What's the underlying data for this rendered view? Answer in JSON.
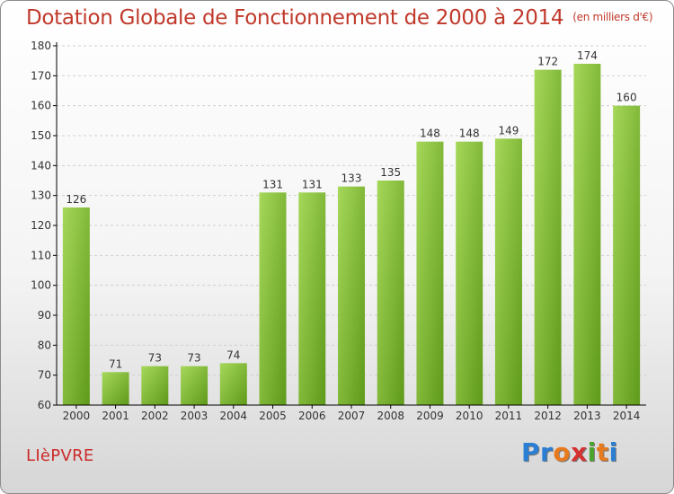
{
  "title": "Dotation Globale de Fonctionnement de 2000 à 2014",
  "subtitle": "(en milliers d'€)",
  "commune": "LIèPVRE",
  "logo": {
    "text": "Proxiti",
    "letters": [
      {
        "ch": "P",
        "color": "#2a7fd4"
      },
      {
        "ch": "r",
        "color": "#2a7fd4"
      },
      {
        "ch": "o",
        "color": "#e87a1e"
      },
      {
        "ch": "x",
        "color": "#d63131"
      },
      {
        "ch": "i",
        "color": "#4aa52c"
      },
      {
        "ch": "t",
        "color": "#e87a1e"
      },
      {
        "ch": "i",
        "color": "#2a7fd4"
      }
    ]
  },
  "colors": {
    "title": "#c0392b",
    "bar_light": "#a6d85a",
    "bar_dark": "#5f9a1a",
    "axis": "#000000",
    "grid": "#d0d0d0"
  },
  "chart_data": {
    "type": "bar",
    "categories": [
      "2000",
      "2001",
      "2002",
      "2003",
      "2004",
      "2005",
      "2006",
      "2007",
      "2008",
      "2009",
      "2010",
      "2011",
      "2012",
      "2013",
      "2014"
    ],
    "values": [
      126,
      71,
      73,
      73,
      74,
      131,
      131,
      133,
      135,
      148,
      148,
      149,
      172,
      174,
      160
    ],
    "ylim": [
      60,
      180
    ],
    "yticks": [
      60,
      70,
      80,
      90,
      100,
      110,
      120,
      130,
      140,
      150,
      160,
      170,
      180
    ],
    "grid": true,
    "data_labels": true
  }
}
